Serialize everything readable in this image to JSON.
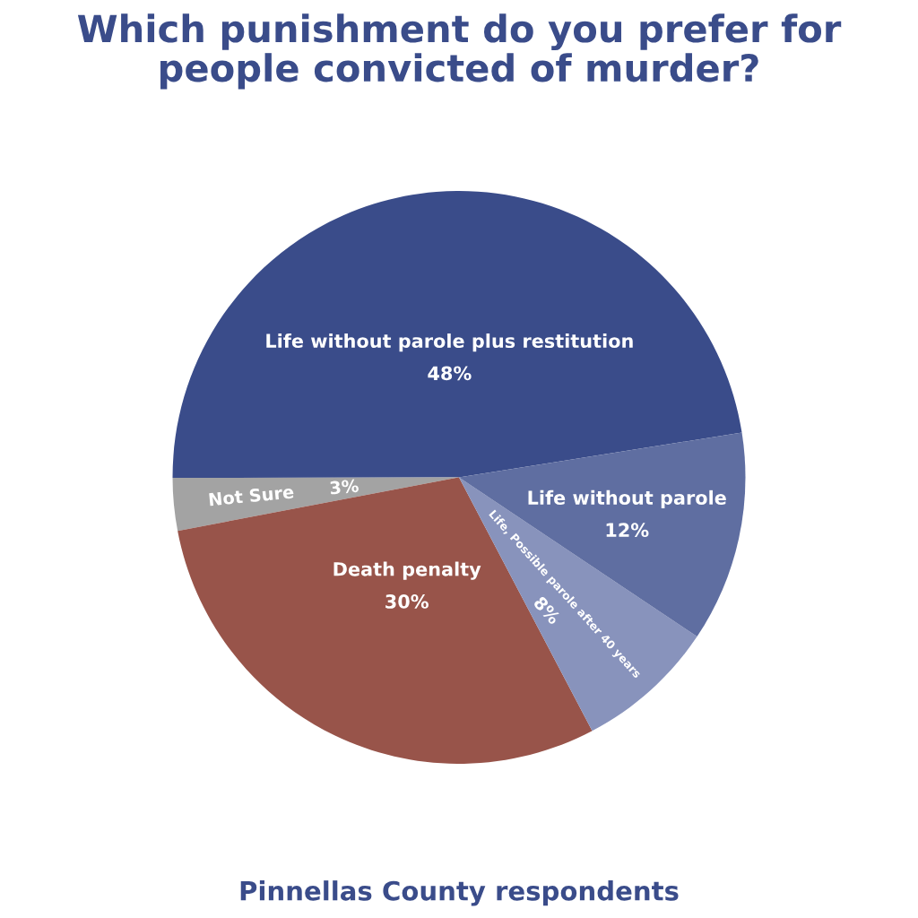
{
  "chart_data": {
    "type": "pie",
    "title": "Which punishment do you prefer for\npeople convicted of murder?",
    "categories": [
      "Life without parole plus restitution",
      "Not Sure",
      "Death penalty",
      "Life, Possible parole after 40 years",
      "Life without parole"
    ],
    "values": [
      48,
      3,
      30,
      8,
      12
    ],
    "colors": [
      "#3a4c8a",
      "#a3a3a3",
      "#98544a",
      "#8893bc",
      "#5f6ea1"
    ],
    "value_labels": [
      "48%",
      "3%",
      "30%",
      "8%",
      "12%"
    ],
    "legend": false,
    "annotations": [
      "Pinnellas County respondents"
    ]
  }
}
